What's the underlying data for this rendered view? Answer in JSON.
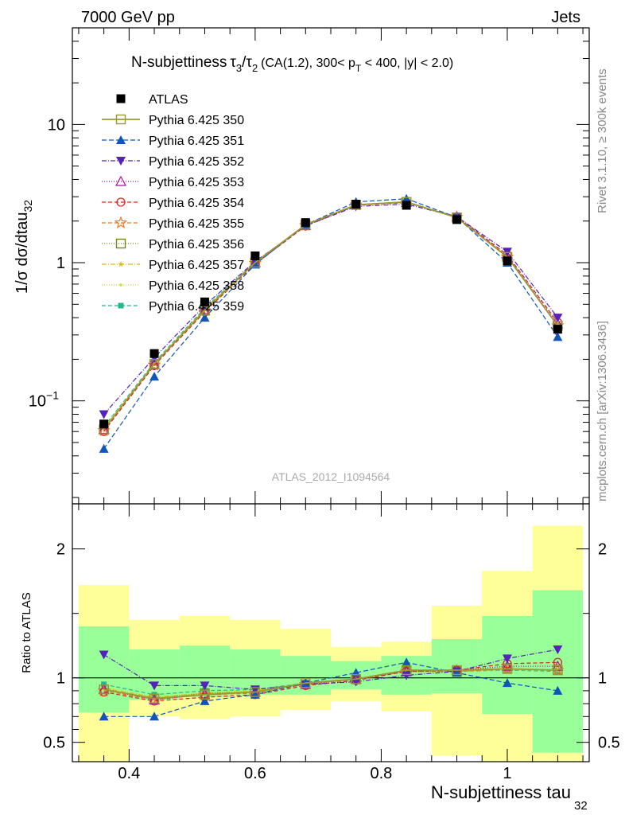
{
  "header": {
    "left": "7000 GeV pp",
    "right": "Jets"
  },
  "side_text": {
    "rivet": "Rivet 3.1.10, ≥ 300k events",
    "mcplots": "mcplots.cern.ch [arXiv:1306.3436]"
  },
  "title": {
    "main": "N-subjettiness",
    "tau3": "τ",
    "sub3": "3",
    "slash": "/",
    "tau2": "τ",
    "sub2": "2",
    "cut1": "(CA(1.2), 300< p",
    "subT": "T",
    "cut2": " < 400, |y| < 2.0)"
  },
  "ylabel_main": {
    "text": "1/σ dσ/dtau",
    "sub": "32"
  },
  "ylabel_ratio": "Ratio to ATLAS",
  "xlabel": {
    "text": "N-subjettiness tau",
    "sub": "32"
  },
  "watermark": "ATLAS_2012_I1094564",
  "colors": {
    "band_inner": "#99ff99",
    "band_outer": "#ffff99"
  },
  "chart_data": [
    {
      "type": "line",
      "yscale": "log",
      "ylim": [
        0.018,
        50
      ],
      "xlim": [
        0.31,
        1.13
      ],
      "x": [
        0.36,
        0.44,
        0.52,
        0.6,
        0.68,
        0.76,
        0.84,
        0.92,
        1.0,
        1.08
      ],
      "xedges": [
        0.32,
        0.4,
        0.48,
        0.56,
        0.64,
        0.72,
        0.8,
        0.88,
        0.96,
        1.04,
        1.12
      ],
      "yticks": [
        {
          "v": 0.1,
          "base": "10",
          "exp": "−1"
        },
        {
          "v": 1,
          "base": "1",
          "exp": ""
        },
        {
          "v": 10,
          "base": "10",
          "exp": ""
        }
      ],
      "series": [
        {
          "name": "ATLAS",
          "color": "#000000",
          "marker": "sqfill",
          "dash": "none",
          "data": true,
          "values": [
            0.068,
            0.22,
            0.52,
            1.12,
            1.95,
            2.65,
            2.6,
            2.05,
            1.03,
            0.33
          ]
        },
        {
          "name": "Pythia 6.425 350",
          "color": "#999933",
          "marker": "sqopen",
          "dash": "",
          "width": 1.8,
          "values": [
            0.062,
            0.185,
            0.45,
            1.0,
            1.88,
            2.62,
            2.75,
            2.12,
            1.1,
            0.35
          ]
        },
        {
          "name": "Pythia 6.425 351",
          "color": "#1155bb",
          "marker": "triup",
          "dash": "6,3",
          "values": [
            0.045,
            0.15,
            0.4,
            0.97,
            1.88,
            2.75,
            2.9,
            2.13,
            1.0,
            0.29
          ]
        },
        {
          "name": "Pythia 6.425 352",
          "color": "#5522bb",
          "marker": "tridown",
          "dash": "6,2,1,2",
          "values": [
            0.08,
            0.205,
            0.49,
            1.02,
            1.85,
            2.55,
            2.65,
            2.15,
            1.2,
            0.4
          ]
        },
        {
          "name": "Pythia 6.425 353",
          "color": "#aa1199",
          "marker": "triopen",
          "dash": "1,2",
          "values": [
            0.062,
            0.183,
            0.45,
            1.0,
            1.86,
            2.62,
            2.73,
            2.14,
            1.12,
            0.36
          ]
        },
        {
          "name": "Pythia 6.425 354",
          "color": "#dd2222",
          "marker": "circopen",
          "dash": "5,3",
          "values": [
            0.06,
            0.18,
            0.44,
            0.98,
            1.84,
            2.6,
            2.72,
            2.15,
            1.14,
            0.37
          ]
        },
        {
          "name": "Pythia 6.425 355",
          "color": "#ee7722",
          "marker": "staropen",
          "dash": "5,3",
          "values": [
            0.061,
            0.182,
            0.45,
            0.99,
            1.86,
            2.62,
            2.73,
            2.13,
            1.1,
            0.35
          ]
        },
        {
          "name": "Pythia 6.425 356",
          "color": "#778811",
          "marker": "sqopen",
          "dash": "1,2",
          "values": [
            0.062,
            0.185,
            0.46,
            1.0,
            1.87,
            2.62,
            2.74,
            2.12,
            1.1,
            0.35
          ]
        },
        {
          "name": "Pythia 6.425 357",
          "color": "#ddbb11",
          "marker": "smallstar",
          "dash": "6,2,1,2",
          "values": [
            0.063,
            0.186,
            0.46,
            1.0,
            1.87,
            2.62,
            2.74,
            2.12,
            1.1,
            0.35
          ]
        },
        {
          "name": "Pythia 6.425 358",
          "color": "#ccdd33",
          "marker": "dot",
          "dash": "1,2",
          "values": [
            0.064,
            0.187,
            0.46,
            1.0,
            1.87,
            2.62,
            2.74,
            2.12,
            1.1,
            0.35
          ]
        },
        {
          "name": "Pythia 6.425 359",
          "color": "#22bb88",
          "marker": "sqfillsmall",
          "dash": "5,3",
          "values": [
            0.065,
            0.19,
            0.47,
            1.01,
            1.87,
            2.63,
            2.75,
            2.13,
            1.09,
            0.35
          ]
        }
      ]
    },
    {
      "type": "line",
      "title": "Ratio to ATLAS",
      "ylim": [
        0.35,
        2.35
      ],
      "xlim": [
        0.31,
        1.13
      ],
      "yticks": [
        0.5,
        1,
        2
      ],
      "xticks": [
        0.4,
        0.6,
        0.8,
        1
      ],
      "x": [
        0.36,
        0.44,
        0.52,
        0.6,
        0.68,
        0.76,
        0.84,
        0.92,
        1.0,
        1.08
      ],
      "band_inner": [
        [
          0.73,
          1.4
        ],
        [
          0.83,
          1.22
        ],
        [
          0.85,
          1.25
        ],
        [
          0.87,
          1.22
        ],
        [
          0.87,
          1.17
        ],
        [
          0.91,
          1.13
        ],
        [
          0.87,
          1.17
        ],
        [
          0.88,
          1.3
        ],
        [
          0.72,
          1.48
        ],
        [
          0.42,
          1.68
        ]
      ],
      "band_outer": [
        [
          0.3,
          1.72
        ],
        [
          0.7,
          1.45
        ],
        [
          0.68,
          1.48
        ],
        [
          0.7,
          1.45
        ],
        [
          0.75,
          1.38
        ],
        [
          0.82,
          1.24
        ],
        [
          0.74,
          1.28
        ],
        [
          0.4,
          1.56
        ],
        [
          0.3,
          1.83
        ],
        [
          0.3,
          2.18
        ]
      ],
      "series": [
        {
          "name": "Pythia 6.425 350",
          "values": [
            0.91,
            0.84,
            0.87,
            0.89,
            0.96,
            0.99,
            1.06,
            1.06,
            1.07,
            1.06
          ]
        },
        {
          "name": "Pythia 6.425 351",
          "values": [
            0.7,
            0.7,
            0.82,
            0.87,
            0.96,
            1.04,
            1.12,
            1.04,
            0.96,
            0.9
          ]
        },
        {
          "name": "Pythia 6.425 352",
          "values": [
            1.18,
            0.94,
            0.94,
            0.91,
            0.95,
            0.97,
            1.02,
            1.05,
            1.15,
            1.22
          ]
        },
        {
          "name": "Pythia 6.425 353",
          "values": [
            0.91,
            0.83,
            0.87,
            0.89,
            0.95,
            0.99,
            1.05,
            1.06,
            1.09,
            1.09
          ]
        },
        {
          "name": "Pythia 6.425 354",
          "values": [
            0.89,
            0.82,
            0.85,
            0.87,
            0.94,
            0.98,
            1.05,
            1.06,
            1.11,
            1.12
          ]
        },
        {
          "name": "Pythia 6.425 355",
          "values": [
            0.9,
            0.83,
            0.87,
            0.88,
            0.95,
            0.99,
            1.05,
            1.05,
            1.07,
            1.06
          ]
        },
        {
          "name": "Pythia 6.425 356",
          "values": [
            0.91,
            0.84,
            0.88,
            0.89,
            0.96,
            0.99,
            1.05,
            1.05,
            1.07,
            1.06
          ]
        },
        {
          "name": "Pythia 6.425 357",
          "values": [
            0.92,
            0.85,
            0.88,
            0.9,
            0.96,
            0.99,
            1.05,
            1.05,
            1.07,
            1.06
          ]
        },
        {
          "name": "Pythia 6.425 358",
          "values": [
            0.93,
            0.85,
            0.89,
            0.9,
            0.96,
            0.99,
            1.05,
            1.05,
            1.06,
            1.06
          ]
        },
        {
          "name": "Pythia 6.425 359",
          "values": [
            0.95,
            0.87,
            0.9,
            0.91,
            0.96,
            0.99,
            1.06,
            1.05,
            1.06,
            1.05
          ]
        }
      ]
    }
  ]
}
